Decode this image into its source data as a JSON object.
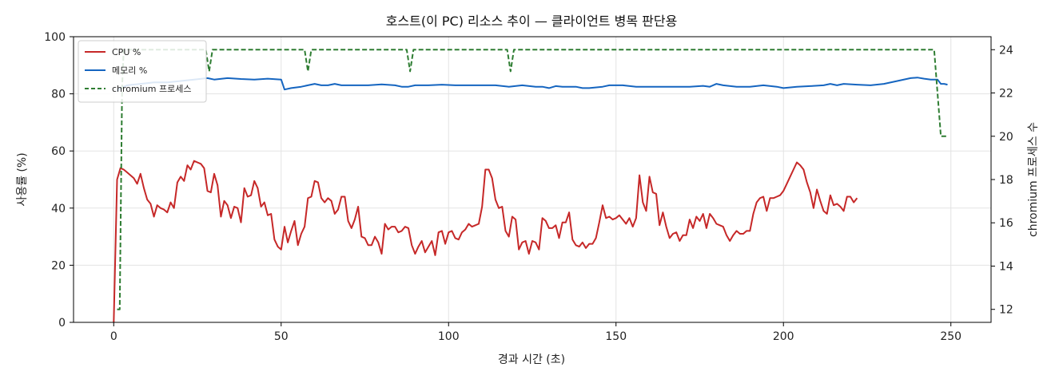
{
  "chart_data": {
    "type": "line",
    "title": "호스트(이 PC) 리소스 추이 — 클라이언트 병목 판단용",
    "xlabel": "경과 시간 (초)",
    "ylabel": "사용률 (%)",
    "ylabel_right": "chromium 프로세스 수",
    "xlim": [
      -12,
      262
    ],
    "ylim": [
      0,
      100
    ],
    "ylim_right": [
      11.4,
      24.6
    ],
    "x_ticks": [
      0,
      50,
      100,
      150,
      200,
      250
    ],
    "y_ticks": [
      0,
      20,
      40,
      60,
      80,
      100
    ],
    "y_ticks_right": [
      12,
      14,
      16,
      18,
      20,
      22,
      24
    ],
    "grid": true,
    "legend_position": "top-left",
    "series": [
      {
        "name": "CPU %",
        "axis": "left",
        "color": "#c62828",
        "style": "solid",
        "points": [
          [
            0,
            0
          ],
          [
            1,
            50
          ],
          [
            2,
            54
          ],
          [
            3,
            53.5
          ],
          [
            4,
            52.5
          ],
          [
            5,
            51.5
          ],
          [
            6,
            50.5
          ],
          [
            7,
            48.5
          ],
          [
            8,
            52
          ],
          [
            9,
            47
          ],
          [
            10,
            43
          ],
          [
            11,
            41.5
          ],
          [
            12,
            37
          ],
          [
            13,
            41
          ],
          [
            14,
            40
          ],
          [
            15,
            39.5
          ],
          [
            16,
            38.5
          ],
          [
            17,
            42
          ],
          [
            18,
            40
          ],
          [
            19,
            49
          ],
          [
            20,
            51
          ],
          [
            21,
            49.5
          ],
          [
            22,
            55
          ],
          [
            23,
            53.5
          ],
          [
            24,
            56.5
          ],
          [
            25,
            56
          ],
          [
            26,
            55.5
          ],
          [
            27,
            54
          ],
          [
            28,
            46
          ],
          [
            29,
            45.5
          ],
          [
            30,
            52
          ],
          [
            31,
            48
          ],
          [
            32,
            37
          ],
          [
            33,
            42.5
          ],
          [
            34,
            41
          ],
          [
            35,
            36.5
          ],
          [
            36,
            40.5
          ],
          [
            37,
            40
          ],
          [
            38,
            35
          ],
          [
            39,
            47
          ],
          [
            40,
            44
          ],
          [
            41,
            44.5
          ],
          [
            42,
            49.5
          ],
          [
            43,
            47
          ],
          [
            44,
            40.5
          ],
          [
            45,
            42
          ],
          [
            46,
            37.5
          ],
          [
            47,
            38
          ],
          [
            48,
            29
          ],
          [
            49,
            26.5
          ],
          [
            50,
            25.5
          ],
          [
            51,
            33.5
          ],
          [
            52,
            28
          ],
          [
            53,
            32
          ],
          [
            54,
            35.5
          ],
          [
            55,
            27
          ],
          [
            56,
            31
          ],
          [
            57,
            33.5
          ],
          [
            58,
            43.5
          ],
          [
            59,
            44
          ],
          [
            60,
            49.5
          ],
          [
            61,
            49
          ],
          [
            62,
            43.5
          ],
          [
            63,
            42
          ],
          [
            64,
            43.5
          ],
          [
            65,
            42.5
          ],
          [
            66,
            38
          ],
          [
            67,
            39.5
          ],
          [
            68,
            44
          ],
          [
            69,
            44
          ],
          [
            70,
            35.5
          ],
          [
            71,
            33
          ],
          [
            72,
            36
          ],
          [
            73,
            40.5
          ],
          [
            74,
            30
          ],
          [
            75,
            29.5
          ],
          [
            76,
            27
          ],
          [
            77,
            27
          ],
          [
            78,
            30
          ],
          [
            79,
            28
          ],
          [
            80,
            24
          ],
          [
            81,
            34.5
          ],
          [
            82,
            32.5
          ],
          [
            83,
            33.5
          ],
          [
            84,
            33.5
          ],
          [
            85,
            31.5
          ],
          [
            86,
            32
          ],
          [
            87,
            33.5
          ],
          [
            88,
            33
          ],
          [
            89,
            27
          ],
          [
            90,
            24
          ],
          [
            91,
            26.5
          ],
          [
            92,
            28.5
          ],
          [
            93,
            24.5
          ],
          [
            94,
            26.5
          ],
          [
            95,
            28.5
          ],
          [
            96,
            23.5
          ],
          [
            97,
            31.5
          ],
          [
            98,
            32
          ],
          [
            99,
            27.5
          ],
          [
            100,
            31.5
          ],
          [
            101,
            32
          ],
          [
            102,
            29.5
          ],
          [
            103,
            29
          ],
          [
            104,
            31.5
          ],
          [
            105,
            32.5
          ],
          [
            106,
            34.5
          ],
          [
            107,
            33.5
          ],
          [
            108,
            34
          ],
          [
            109,
            34.5
          ],
          [
            110,
            40.5
          ],
          [
            111,
            53.5
          ],
          [
            112,
            53.5
          ],
          [
            113,
            50.5
          ],
          [
            114,
            43
          ],
          [
            115,
            40
          ],
          [
            116,
            40.5
          ],
          [
            117,
            32
          ],
          [
            118,
            30
          ],
          [
            119,
            37
          ],
          [
            120,
            36
          ],
          [
            121,
            25.5
          ],
          [
            122,
            28
          ],
          [
            123,
            28.5
          ],
          [
            124,
            24
          ],
          [
            125,
            28.5
          ],
          [
            126,
            28
          ],
          [
            127,
            25.5
          ],
          [
            128,
            36.5
          ],
          [
            129,
            35.5
          ],
          [
            130,
            33
          ],
          [
            131,
            33
          ],
          [
            132,
            34
          ],
          [
            133,
            29.5
          ],
          [
            134,
            35
          ],
          [
            135,
            35
          ],
          [
            136,
            38.5
          ],
          [
            137,
            29
          ],
          [
            138,
            27
          ],
          [
            139,
            26.5
          ],
          [
            140,
            28
          ],
          [
            141,
            26
          ],
          [
            142,
            27.5
          ],
          [
            143,
            27.5
          ],
          [
            144,
            29.5
          ],
          [
            145,
            35
          ],
          [
            146,
            41
          ],
          [
            147,
            36.5
          ],
          [
            148,
            37
          ],
          [
            149,
            36
          ],
          [
            150,
            36.5
          ],
          [
            151,
            37.5
          ],
          [
            152,
            36
          ],
          [
            153,
            34.5
          ],
          [
            154,
            36.5
          ],
          [
            155,
            33.5
          ],
          [
            156,
            36.5
          ],
          [
            157,
            51.5
          ],
          [
            158,
            42
          ],
          [
            159,
            39
          ],
          [
            160,
            51
          ],
          [
            161,
            45.5
          ],
          [
            162,
            45
          ],
          [
            163,
            34
          ],
          [
            164,
            38.5
          ],
          [
            165,
            33.5
          ],
          [
            166,
            29.5
          ],
          [
            167,
            31
          ],
          [
            168,
            31.5
          ],
          [
            169,
            28.5
          ],
          [
            170,
            30.5
          ],
          [
            171,
            30.5
          ],
          [
            172,
            36
          ],
          [
            173,
            33
          ],
          [
            174,
            37
          ],
          [
            175,
            35.5
          ],
          [
            176,
            38
          ],
          [
            177,
            33
          ],
          [
            178,
            38
          ],
          [
            179,
            36.5
          ],
          [
            180,
            34.5
          ],
          [
            181,
            34
          ],
          [
            182,
            33.5
          ],
          [
            183,
            30.5
          ],
          [
            184,
            28.5
          ],
          [
            185,
            30.5
          ],
          [
            186,
            32
          ],
          [
            187,
            31
          ],
          [
            188,
            31
          ],
          [
            189,
            32
          ],
          [
            190,
            32
          ],
          [
            191,
            38
          ],
          [
            192,
            42
          ],
          [
            193,
            43.5
          ],
          [
            194,
            44
          ],
          [
            195,
            39
          ],
          [
            196,
            43.5
          ],
          [
            197,
            43.5
          ],
          [
            198,
            44
          ],
          [
            199,
            44.5
          ],
          [
            200,
            46
          ],
          [
            201,
            48.5
          ],
          [
            202,
            51
          ],
          [
            203,
            53.5
          ],
          [
            204,
            56
          ],
          [
            205,
            55
          ],
          [
            206,
            53.5
          ],
          [
            207,
            49
          ],
          [
            208,
            45.5
          ],
          [
            209,
            40
          ],
          [
            210,
            46.5
          ],
          [
            211,
            42.5
          ],
          [
            212,
            39
          ],
          [
            213,
            38
          ],
          [
            214,
            44.5
          ],
          [
            215,
            41
          ],
          [
            216,
            41.5
          ],
          [
            217,
            40.5
          ],
          [
            218,
            39
          ],
          [
            219,
            44
          ],
          [
            220,
            44
          ],
          [
            221,
            42
          ],
          [
            222,
            43.5
          ]
        ]
      },
      {
        "name": "메모리 %",
        "axis": "left",
        "color": "#1565c0",
        "style": "solid",
        "points": [
          [
            1,
            81
          ],
          [
            2,
            82
          ],
          [
            4,
            83
          ],
          [
            8,
            83.5
          ],
          [
            12,
            84
          ],
          [
            16,
            84
          ],
          [
            20,
            84.5
          ],
          [
            24,
            85
          ],
          [
            28,
            85.5
          ],
          [
            30,
            85
          ],
          [
            34,
            85.5
          ],
          [
            38,
            85.2
          ],
          [
            42,
            85
          ],
          [
            46,
            85.3
          ],
          [
            50,
            85
          ],
          [
            51,
            81.5
          ],
          [
            53,
            82
          ],
          [
            56,
            82.5
          ],
          [
            58,
            83
          ],
          [
            60,
            83.5
          ],
          [
            62,
            83
          ],
          [
            64,
            83
          ],
          [
            66,
            83.5
          ],
          [
            68,
            83
          ],
          [
            72,
            83
          ],
          [
            76,
            83
          ],
          [
            80,
            83.3
          ],
          [
            84,
            83
          ],
          [
            86,
            82.5
          ],
          [
            88,
            82.5
          ],
          [
            90,
            83
          ],
          [
            94,
            83
          ],
          [
            98,
            83.2
          ],
          [
            102,
            83
          ],
          [
            106,
            83
          ],
          [
            110,
            83
          ],
          [
            114,
            83
          ],
          [
            118,
            82.5
          ],
          [
            122,
            83
          ],
          [
            126,
            82.5
          ],
          [
            128,
            82.5
          ],
          [
            130,
            82
          ],
          [
            132,
            82.7
          ],
          [
            134,
            82.5
          ],
          [
            138,
            82.5
          ],
          [
            140,
            82
          ],
          [
            142,
            82
          ],
          [
            146,
            82.5
          ],
          [
            148,
            83
          ],
          [
            152,
            83
          ],
          [
            156,
            82.5
          ],
          [
            160,
            82.5
          ],
          [
            164,
            82.5
          ],
          [
            168,
            82.5
          ],
          [
            172,
            82.5
          ],
          [
            176,
            82.8
          ],
          [
            178,
            82.5
          ],
          [
            180,
            83.5
          ],
          [
            182,
            83
          ],
          [
            186,
            82.5
          ],
          [
            190,
            82.5
          ],
          [
            194,
            83
          ],
          [
            198,
            82.5
          ],
          [
            200,
            82
          ],
          [
            204,
            82.5
          ],
          [
            208,
            82.7
          ],
          [
            212,
            83
          ],
          [
            214,
            83.5
          ],
          [
            216,
            83
          ],
          [
            218,
            83.5
          ],
          [
            222,
            83.2
          ],
          [
            226,
            83
          ],
          [
            230,
            83.5
          ],
          [
            234,
            84.5
          ],
          [
            238,
            85.5
          ],
          [
            240,
            85.7
          ],
          [
            242,
            85.3
          ],
          [
            244,
            85
          ],
          [
            246,
            85
          ],
          [
            247,
            83.5
          ],
          [
            248,
            83.5
          ],
          [
            249,
            83.2
          ]
        ]
      },
      {
        "name": "chromium 프로세스",
        "axis": "right",
        "color": "#2e7d32",
        "style": "dashed",
        "points": [
          [
            1,
            12
          ],
          [
            1.8,
            12
          ],
          [
            2.5,
            22.3
          ],
          [
            3,
            24
          ],
          [
            27.5,
            24
          ],
          [
            28.5,
            23
          ],
          [
            29.5,
            24
          ],
          [
            57,
            24
          ],
          [
            58,
            23
          ],
          [
            59,
            24
          ],
          [
            87.5,
            24
          ],
          [
            88.5,
            23
          ],
          [
            89.5,
            24
          ],
          [
            117.5,
            24
          ],
          [
            118.5,
            23
          ],
          [
            119.5,
            24
          ],
          [
            245,
            24
          ],
          [
            247,
            20
          ],
          [
            249,
            20
          ]
        ]
      }
    ]
  }
}
